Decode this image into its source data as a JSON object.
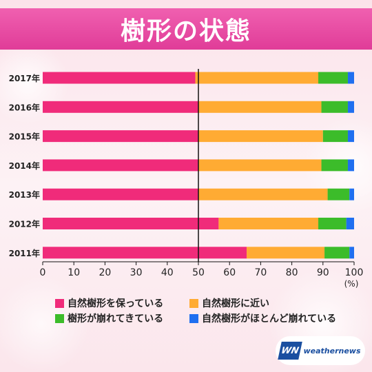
{
  "title": "樹形の状態",
  "chart_data": {
    "type": "bar",
    "orientation": "horizontal",
    "stacked": true,
    "categories": [
      "2017年",
      "2016年",
      "2015年",
      "2014年",
      "2013年",
      "2012年",
      "2011年"
    ],
    "series": [
      {
        "name": "自然樹形を保っている",
        "color": "#f02b7a",
        "values": [
          49,
          50,
          50,
          50,
          50,
          56.5,
          65.5
        ]
      },
      {
        "name": "自然樹形に近い",
        "color": "#ffab33",
        "values": [
          39.5,
          39.5,
          40,
          39.5,
          41.5,
          32,
          25
        ]
      },
      {
        "name": "樹形が崩れてきている",
        "color": "#3cbc2a",
        "values": [
          9.5,
          8.5,
          8,
          8.5,
          7,
          9,
          8
        ]
      },
      {
        "name": "自然樹形がほとんど崩れている",
        "color": "#1f6ff0",
        "values": [
          2,
          2,
          2,
          2,
          1.5,
          2.5,
          1.5
        ]
      }
    ],
    "x_ticks": [
      "0",
      "10",
      "20",
      "30",
      "40",
      "50",
      "60",
      "70",
      "80",
      "90",
      "100"
    ],
    "xlim": [
      0,
      100
    ],
    "x_unit": "(%)",
    "reference_line": 50,
    "grid": false,
    "legend_position": "bottom"
  },
  "logo": {
    "mark": "WN",
    "text": "weathernews"
  }
}
